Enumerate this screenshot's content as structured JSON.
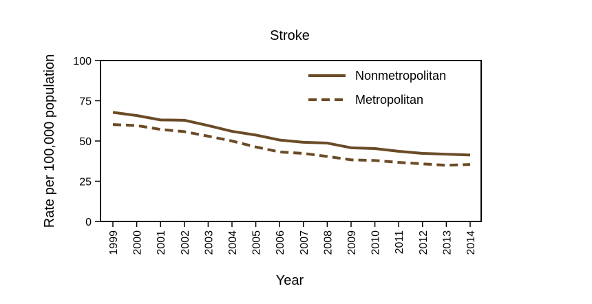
{
  "chart_data": {
    "type": "line",
    "title": "Stroke",
    "xlabel": "Year",
    "ylabel": "Rate per 100,000 population",
    "ylim": [
      0,
      100
    ],
    "yticks": [
      "0",
      "25",
      "50",
      "75",
      "100"
    ],
    "x": [
      "1999",
      "2000",
      "2001",
      "2002",
      "2003",
      "2004",
      "2005",
      "2006",
      "2007",
      "2008",
      "2009",
      "2010",
      "2011",
      "2012",
      "2013",
      "2014"
    ],
    "series": [
      {
        "name": "Nonmetropolitan",
        "line_style": "solid",
        "values": [
          67.8,
          65.8,
          63.1,
          62.9,
          59.6,
          56.0,
          53.7,
          50.6,
          49.2,
          48.7,
          45.8,
          45.3,
          43.6,
          42.3,
          41.8,
          41.3
        ]
      },
      {
        "name": "Metropolitan",
        "line_style": "dashed",
        "values": [
          60.2,
          59.6,
          57.2,
          55.8,
          53.0,
          50.0,
          46.3,
          43.2,
          42.3,
          40.4,
          38.3,
          37.9,
          36.7,
          35.8,
          34.9,
          35.4
        ]
      }
    ],
    "legend_position": "top-right",
    "grid": false,
    "line_color": "#6b4b27"
  }
}
